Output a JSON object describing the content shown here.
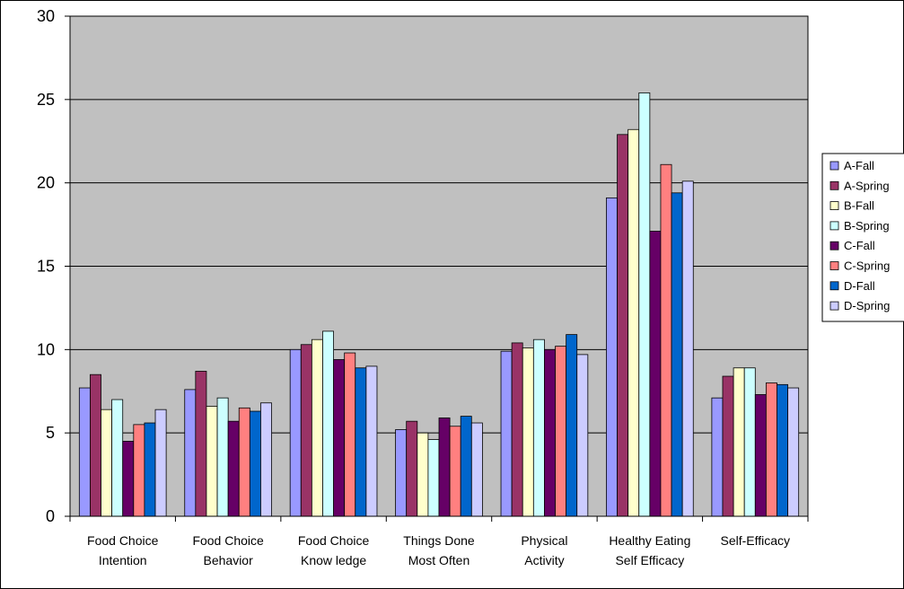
{
  "chart_data": {
    "type": "bar",
    "title": "",
    "xlabel": "",
    "ylabel": "",
    "ylim": [
      0,
      30
    ],
    "yticks": [
      0,
      5,
      10,
      15,
      20,
      25,
      30
    ],
    "grid": true,
    "legend_position": "right",
    "categories": [
      [
        "Food Choice",
        "Intention"
      ],
      [
        "Food Choice",
        "Behavior"
      ],
      [
        "Food Choice",
        "Know ledge"
      ],
      [
        "Things Done",
        "Most Often"
      ],
      [
        "Physical",
        "Activity"
      ],
      [
        "Healthy Eating",
        "Self Efficacy"
      ],
      [
        "Self-Efficacy"
      ]
    ],
    "series": [
      {
        "name": "A-Fall",
        "color": "#9999FF",
        "values": [
          7.7,
          7.6,
          10.0,
          5.2,
          9.9,
          19.1,
          7.1
        ]
      },
      {
        "name": "A-Spring",
        "color": "#993366",
        "values": [
          8.5,
          8.7,
          10.3,
          5.7,
          10.4,
          22.9,
          8.4
        ]
      },
      {
        "name": "B-Fall",
        "color": "#FFFFCC",
        "values": [
          6.4,
          6.6,
          10.6,
          5.0,
          10.1,
          23.2,
          8.9
        ]
      },
      {
        "name": "B-Spring",
        "color": "#CCFFFF",
        "values": [
          7.0,
          7.1,
          11.1,
          4.6,
          10.6,
          25.4,
          8.9
        ]
      },
      {
        "name": "C-Fall",
        "color": "#660066",
        "values": [
          4.5,
          5.7,
          9.4,
          5.9,
          10.0,
          17.1,
          7.3
        ]
      },
      {
        "name": "C-Spring",
        "color": "#FF8080",
        "values": [
          5.5,
          6.5,
          9.8,
          5.4,
          10.2,
          21.1,
          8.0
        ]
      },
      {
        "name": "D-Fall",
        "color": "#0066CC",
        "values": [
          5.6,
          6.3,
          8.9,
          6.0,
          10.9,
          19.4,
          7.9
        ]
      },
      {
        "name": "D-Spring",
        "color": "#CCCCFF",
        "values": [
          6.4,
          6.8,
          9.0,
          5.6,
          9.7,
          20.1,
          7.7
        ]
      }
    ],
    "colors": {
      "plot_background": "#C0C0C0",
      "gridline": "#000000",
      "border": "#000000"
    }
  }
}
